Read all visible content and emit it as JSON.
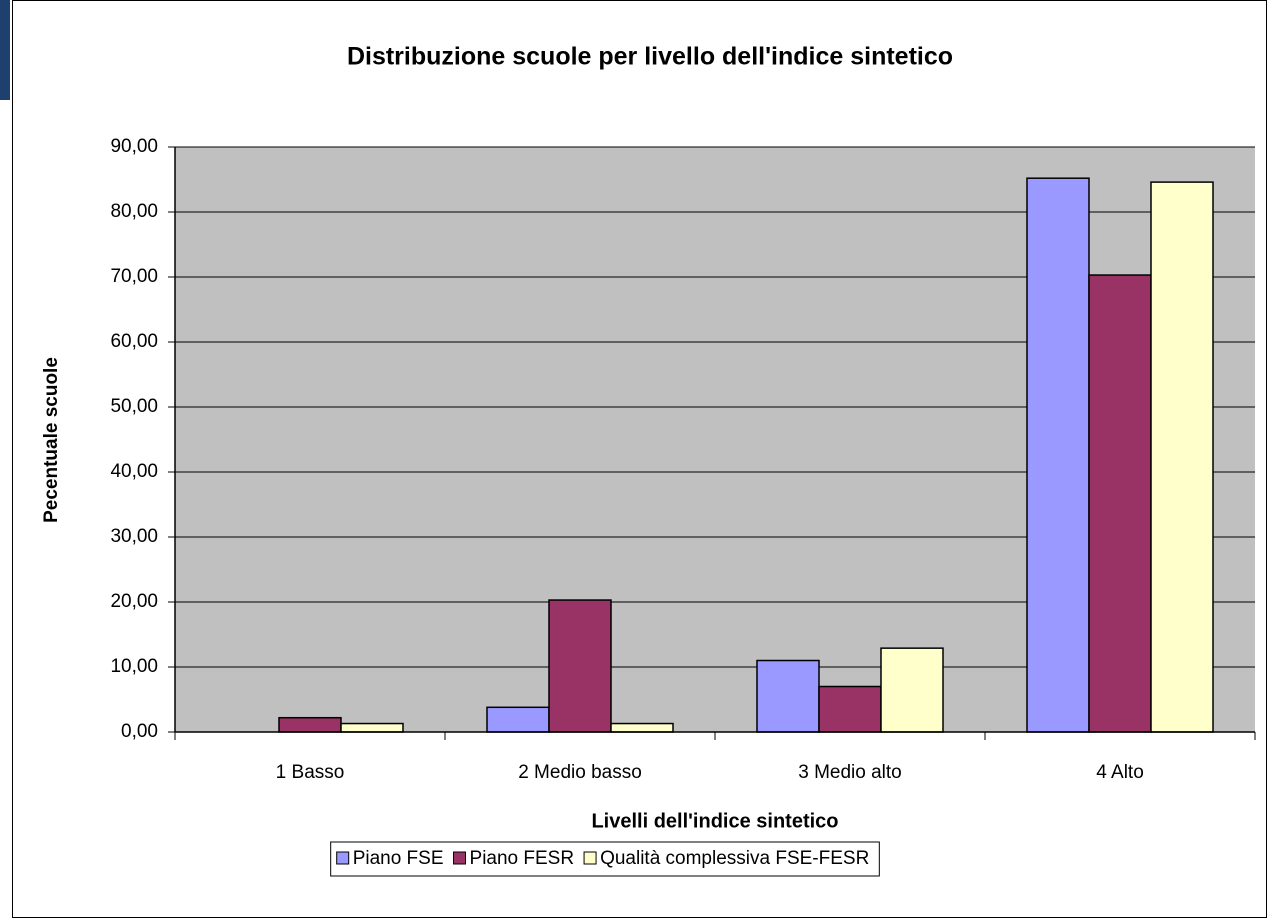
{
  "chart_data": {
    "type": "bar",
    "title": "Distribuzione scuole per livello dell'indice sintetico",
    "x_label": "Livelli dell'indice sintetico",
    "y_label": "Pecentuale scuole",
    "categories": [
      "1 Basso",
      "2 Medio basso",
      "3 Medio alto",
      "4 Alto"
    ],
    "series": [
      {
        "name": "Piano FSE",
        "color": "#9999ff",
        "values": [
          0,
          3.8,
          11.0,
          85.2
        ]
      },
      {
        "name": "Piano FESR",
        "color": "#993366",
        "values": [
          2.2,
          20.3,
          7.0,
          70.3
        ]
      },
      {
        "name": "Qualità complessiva FSE-FESR",
        "color": "#ffffcc",
        "values": [
          1.3,
          1.3,
          12.9,
          84.6
        ]
      }
    ],
    "ylim": [
      0,
      90
    ],
    "yticks": [
      {
        "value": 0,
        "label": "0,00"
      },
      {
        "value": 10,
        "label": "10,00"
      },
      {
        "value": 20,
        "label": "20,00"
      },
      {
        "value": 30,
        "label": "30,00"
      },
      {
        "value": 40,
        "label": "40,00"
      },
      {
        "value": 50,
        "label": "50,00"
      },
      {
        "value": 60,
        "label": "60,00"
      },
      {
        "value": 70,
        "label": "70,00"
      },
      {
        "value": 80,
        "label": "80,00"
      },
      {
        "value": 90,
        "label": "90,00"
      }
    ],
    "grid": true,
    "legend": "bottom"
  }
}
